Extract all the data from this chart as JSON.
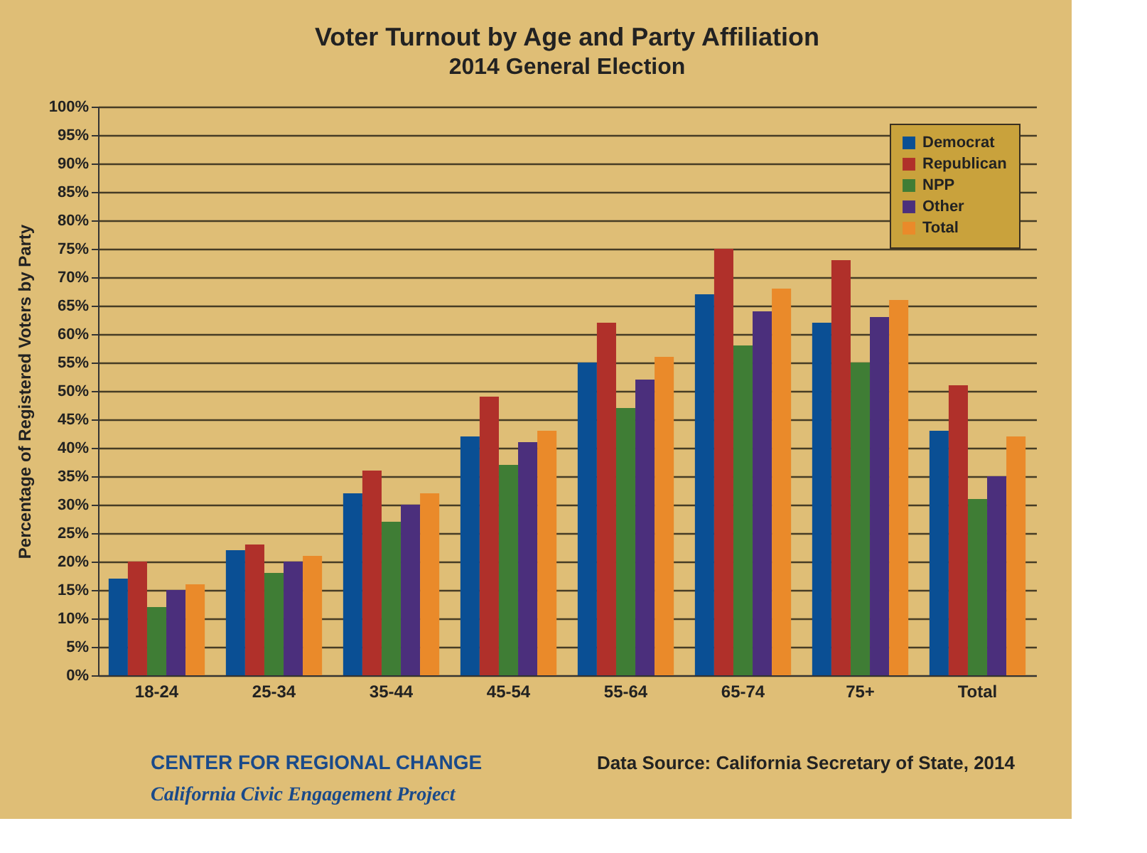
{
  "chart_data": {
    "type": "bar",
    "title": "Voter Turnout by Age and Party Affiliation",
    "subtitle": "2014 General Election",
    "ylabel": "Percentage of Registered Voters by Party",
    "categories": [
      "18-24",
      "25-34",
      "35-44",
      "45-54",
      "55-64",
      "65-74",
      "75+",
      "Total"
    ],
    "series": [
      {
        "name": "Democrat",
        "color": "#0a4f94",
        "values": [
          17,
          22,
          32,
          42,
          55,
          67,
          62,
          43
        ]
      },
      {
        "name": "Republican",
        "color": "#b0302a",
        "values": [
          20,
          23,
          36,
          49,
          62,
          75,
          73,
          51
        ]
      },
      {
        "name": "NPP",
        "color": "#3f7d35",
        "values": [
          12,
          18,
          27,
          37,
          47,
          58,
          55,
          31
        ]
      },
      {
        "name": "Other",
        "color": "#4b2f7c",
        "values": [
          15,
          20,
          30,
          41,
          52,
          64,
          63,
          35
        ]
      },
      {
        "name": "Total",
        "color": "#ea8a2a",
        "values": [
          16,
          21,
          32,
          43,
          56,
          68,
          66,
          42
        ]
      }
    ],
    "ylim": [
      0,
      100
    ],
    "yticks": [
      {
        "value": 0,
        "label": "0%"
      },
      {
        "value": 5,
        "label": "5%"
      },
      {
        "value": 10,
        "label": "10%"
      },
      {
        "value": 15,
        "label": "15%"
      },
      {
        "value": 20,
        "label": "20%"
      },
      {
        "value": 25,
        "label": "25%"
      },
      {
        "value": 30,
        "label": "30%"
      },
      {
        "value": 35,
        "label": "35%"
      },
      {
        "value": 40,
        "label": "40%"
      },
      {
        "value": 45,
        "label": "45%"
      },
      {
        "value": 50,
        "label": "50%"
      },
      {
        "value": 55,
        "label": "55%"
      },
      {
        "value": 60,
        "label": "60%"
      },
      {
        "value": 65,
        "label": "65%"
      },
      {
        "value": 70,
        "label": "70%"
      },
      {
        "value": 75,
        "label": "75%"
      },
      {
        "value": 80,
        "label": "80%"
      },
      {
        "value": 85,
        "label": "85%"
      },
      {
        "value": 90,
        "label": "90%"
      },
      {
        "value": 95,
        "label": "95%"
      },
      {
        "value": 100,
        "label": "100%"
      }
    ],
    "grid": "y",
    "legend": "top right",
    "annotations": [
      "CENTER FOR REGIONAL CHANGE",
      "California Civic Engagement Project",
      "Data Source: California Secretary of State, 2014"
    ]
  }
}
